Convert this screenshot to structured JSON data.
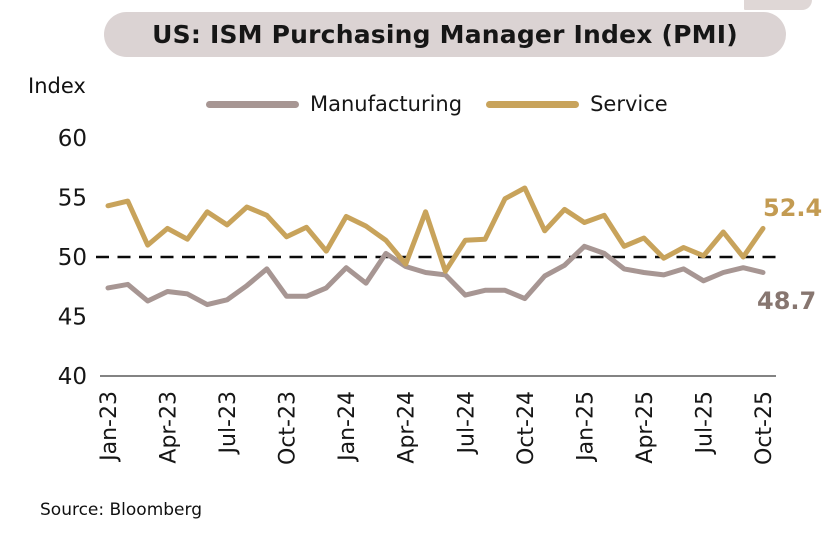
{
  "title": "US: ISM Purchasing Manager Index (PMI)",
  "source": "Source: Bloomberg",
  "colors": {
    "title_pill_bg": "#DBD3D3",
    "manufacturing_line": "#A79693",
    "service_line": "#C8A35B",
    "service_end_label": "#C39B52",
    "manufacturing_end_label": "#877670",
    "reference_line": "#0A0A0A",
    "axis_line": "#5A5A5A"
  },
  "chart_data": {
    "type": "line",
    "title": "US: ISM Purchasing Manager Index (PMI)",
    "ylabel": "Index",
    "xlabel": "",
    "ylim": [
      40,
      60
    ],
    "y_ticks": [
      40,
      45,
      50,
      55,
      60
    ],
    "x_tick_every": 3,
    "reference_line": 50,
    "grid": false,
    "legend_position": "top",
    "categories": [
      "Jan-23",
      "Feb-23",
      "Mar-23",
      "Apr-23",
      "May-23",
      "Jun-23",
      "Jul-23",
      "Aug-23",
      "Sep-23",
      "Oct-23",
      "Nov-23",
      "Dec-23",
      "Jan-24",
      "Feb-24",
      "Mar-24",
      "Apr-24",
      "May-24",
      "Jun-24",
      "Jul-24",
      "Aug-24",
      "Sep-24",
      "Oct-24",
      "Nov-24",
      "Dec-24",
      "Jan-25",
      "Feb-25",
      "Mar-25",
      "Apr-25",
      "May-25",
      "Jun-25",
      "Jul-25",
      "Aug-25",
      "Sep-25",
      "Oct-25"
    ],
    "series": [
      {
        "name": "Manufacturing",
        "color": "#A79693",
        "values": [
          47.4,
          47.7,
          46.3,
          47.1,
          46.9,
          46.0,
          46.4,
          47.6,
          49.0,
          46.7,
          46.7,
          47.4,
          49.1,
          47.8,
          50.3,
          49.2,
          48.7,
          48.5,
          46.8,
          47.2,
          47.2,
          46.5,
          48.4,
          49.3,
          50.9,
          50.3,
          49.0,
          48.7,
          48.5,
          49.0,
          48.0,
          48.7,
          49.1,
          48.7
        ]
      },
      {
        "name": "Service",
        "color": "#C8A35B",
        "values": [
          54.3,
          54.7,
          51.0,
          52.4,
          51.5,
          53.8,
          52.7,
          54.2,
          53.5,
          51.7,
          52.5,
          50.5,
          53.4,
          52.6,
          51.4,
          49.4,
          53.8,
          48.8,
          51.4,
          51.5,
          54.9,
          55.8,
          52.2,
          54.0,
          52.9,
          53.5,
          50.9,
          51.6,
          49.9,
          50.8,
          50.1,
          52.1,
          50.0,
          52.4
        ]
      }
    ],
    "end_labels": {
      "service": "52.4",
      "manufacturing": "48.7"
    }
  }
}
